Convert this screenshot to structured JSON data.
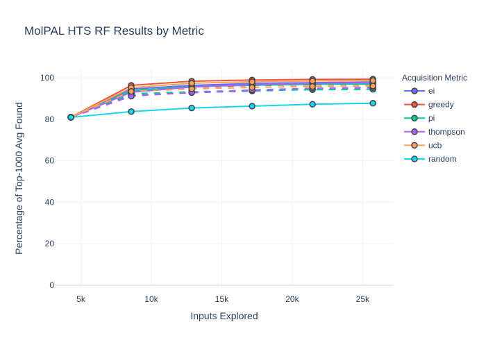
{
  "chart_data": {
    "type": "line",
    "title": "MolPAL HTS RF Results by Metric",
    "xlabel": "Inputs Explored",
    "ylabel": "Percentage of Top-1000 Avg Found",
    "xlim": [
      3200,
      27200
    ],
    "ylim": [
      -1,
      104
    ],
    "x_ticks": [
      5000,
      10000,
      15000,
      20000,
      25000
    ],
    "x_tick_labels": [
      "5k",
      "10k",
      "15k",
      "20k",
      "25k"
    ],
    "y_ticks": [
      0,
      20,
      40,
      60,
      80,
      100
    ],
    "y_tick_labels": [
      "0",
      "20",
      "40",
      "60",
      "80",
      "100"
    ],
    "grid": true,
    "legend_title": "Acquisition Metric",
    "legend_position": "right",
    "x": [
      4288,
      8576,
      12864,
      17152,
      21440,
      25728
    ],
    "series": [
      {
        "name": "ei",
        "color": "#636efa",
        "lines": [
          {
            "dash": "solid",
            "values": [
              80.9,
              94.5,
              96.3,
              97.2,
              97.6,
              97.9
            ]
          },
          {
            "dash": "dash",
            "values": [
              80.9,
              91.5,
              92.8,
              93.6,
              94.3,
              94.6
            ]
          }
        ]
      },
      {
        "name": "greedy",
        "color": "#EF553B",
        "lines": [
          {
            "dash": "solid",
            "values": [
              81.0,
              96.3,
              98.3,
              98.9,
              99.2,
              99.3
            ]
          },
          {
            "dash": "dash",
            "values": [
              81.0,
              93.8,
              95.4,
              96.2,
              96.6,
              96.9
            ]
          }
        ]
      },
      {
        "name": "pi",
        "color": "#00cc96",
        "lines": [
          {
            "dash": "solid",
            "values": [
              80.9,
              93.7,
              95.7,
              96.4,
              96.8,
              97.0
            ]
          },
          {
            "dash": "dash",
            "values": [
              80.9,
              92.3,
              93.2,
              93.9,
              94.2,
              94.4
            ]
          }
        ]
      },
      {
        "name": "thompson",
        "color": "#ab63fa",
        "lines": [
          {
            "dash": "solid",
            "values": [
              80.9,
              93.0,
              95.5,
              96.7,
              97.3,
              97.6
            ]
          },
          {
            "dash": "dash",
            "values": [
              80.9,
              91.1,
              92.9,
              94.1,
              94.9,
              95.3
            ]
          }
        ]
      },
      {
        "name": "ucb",
        "color": "#FFA15A",
        "lines": [
          {
            "dash": "solid",
            "values": [
              81.0,
              95.2,
              97.3,
              98.0,
              98.4,
              98.6
            ]
          },
          {
            "dash": "dash",
            "values": [
              81.0,
              93.4,
              94.6,
              95.3,
              95.8,
              96.0
            ]
          }
        ]
      },
      {
        "name": "random",
        "color": "#19d3f3",
        "lines": [
          {
            "dash": "solid",
            "values": [
              80.9,
              83.7,
              85.4,
              86.3,
              87.2,
              87.7
            ]
          }
        ]
      }
    ]
  }
}
